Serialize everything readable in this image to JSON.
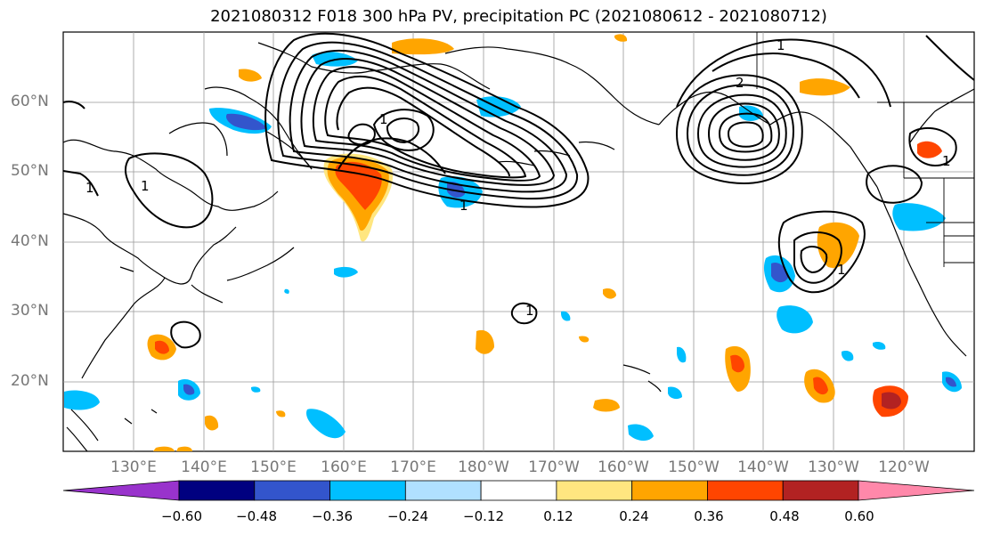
{
  "title": "2021080312 F018 300 hPa PV, precipitation PC (2021080612 - 2021080712)",
  "lat_labels": [
    "60°N",
    "50°N",
    "40°N",
    "30°N",
    "20°N"
  ],
  "lon_labels": [
    "130°E",
    "140°E",
    "150°E",
    "160°E",
    "170°E",
    "180°W",
    "170°W",
    "160°W",
    "150°W",
    "140°W",
    "130°W",
    "120°W"
  ],
  "colorbar": {
    "colors": [
      "#9933cc",
      "#000080",
      "#3355cc",
      "#00bfff",
      "#b0e0ff",
      "#ffffff",
      "#ffe680",
      "#ffa500",
      "#ff4500",
      "#b22222",
      "#ff88aa"
    ],
    "labels": [
      "−0.60",
      "−0.48",
      "−0.36",
      "−0.24",
      "−0.12",
      "0.12",
      "0.24",
      "0.36",
      "0.48",
      "0.60"
    ]
  },
  "contour_labels": [
    "1",
    "1",
    "1",
    "1",
    "1",
    "2",
    "1",
    "1",
    "1"
  ]
}
